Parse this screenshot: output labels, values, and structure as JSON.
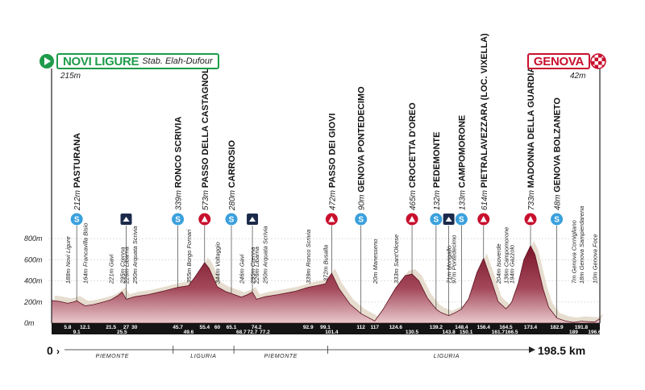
{
  "start": {
    "name": "NOVI LIGURE",
    "sub": "Stab. Elah-Dufour",
    "alt": "215m"
  },
  "finish": {
    "name": "GENOVA",
    "alt": "42m"
  },
  "distance": {
    "zero": "0",
    "total": "198.5 km"
  },
  "regions": [
    "PIEMONTE",
    "LIGURIA",
    "PIEMONTE",
    "LIGURIA"
  ],
  "altitude_ticks": [
    "0m",
    "200m",
    "400m",
    "600m",
    "800m"
  ],
  "colors": {
    "green": "#1e9b4a",
    "red": "#c8102e",
    "blue": "#3aa0dc",
    "profile": "#8e1b2f"
  },
  "markers": [
    {
      "km": 9.1,
      "type": "sprint",
      "alt": "212m",
      "name": "PASTURANA"
    },
    {
      "km": 27,
      "type": "feed",
      "alt": "",
      "name": ""
    },
    {
      "km": 45.7,
      "type": "sprint",
      "alt": "339m",
      "name": "RONCO SCRIVIA"
    },
    {
      "km": 55.4,
      "type": "climb",
      "alt": "573m",
      "name": "PASSO DELLA CASTAGNOLA"
    },
    {
      "km": 65.1,
      "type": "sprint",
      "alt": "280m",
      "name": "CARROSIO"
    },
    {
      "km": 72.7,
      "type": "feed",
      "alt": "",
      "name": ""
    },
    {
      "km": 101.4,
      "type": "climb",
      "alt": "472m",
      "name": "PASSO DEI GIOVI"
    },
    {
      "km": 112,
      "type": "sprint",
      "alt": "90m",
      "name": "GENOVA PONTEDECIMO"
    },
    {
      "km": 130.5,
      "type": "climb",
      "alt": "465m",
      "name": "CROCETTA D'OREO"
    },
    {
      "km": 139.2,
      "type": "sprint",
      "alt": "132m",
      "name": "PEDEMONTE"
    },
    {
      "km": 143.8,
      "type": "feed",
      "alt": "",
      "name": ""
    },
    {
      "km": 148.4,
      "type": "sprint",
      "alt": "133m",
      "name": "CAMPOMORONE"
    },
    {
      "km": 156.4,
      "type": "climb",
      "alt": "614m",
      "name": "PIETRALAVEZZARA (LOC. VIXELLA)"
    },
    {
      "km": 173.4,
      "type": "climb",
      "alt": "733m",
      "name": "MADONNA DELLA GUARDIA"
    },
    {
      "km": 182.9,
      "type": "sprint",
      "alt": "48m",
      "name": "GENOVA BOLZANETO"
    }
  ],
  "places": [
    {
      "km": 5.8,
      "label": "188m Novi Ligure"
    },
    {
      "km": 12.1,
      "label": "164m Francavilla Bisio"
    },
    {
      "km": 21.5,
      "label": "221m Gavi"
    },
    {
      "km": 25.5,
      "label": "295m Crenna"
    },
    {
      "km": 27,
      "label": "226m Libarna"
    },
    {
      "km": 30,
      "label": "250m Arquata Scrivia"
    },
    {
      "km": 49.6,
      "label": "355m Borgo Fornari"
    },
    {
      "km": 60,
      "label": "344m Voltaggio"
    },
    {
      "km": 68.7,
      "label": "246m Gavi"
    },
    {
      "km": 72.7,
      "label": "295m Crenna"
    },
    {
      "km": 74.2,
      "label": "226m Libarna"
    },
    {
      "km": 77.2,
      "label": "250m Arquata Scrivia"
    },
    {
      "km": 92.9,
      "label": "339m Ronco Scrivia"
    },
    {
      "km": 99.1,
      "label": "372m Busalla"
    },
    {
      "km": 117,
      "label": "20m Manesseno"
    },
    {
      "km": 124.6,
      "label": "333m Sant'Olcese"
    },
    {
      "km": 143.8,
      "label": "71m Morigallo"
    },
    {
      "km": 145.5,
      "label": "97m Pontedecimo"
    },
    {
      "km": 161.7,
      "label": "204m Isoverde"
    },
    {
      "km": 164.5,
      "label": "136m Campomorone"
    },
    {
      "km": 166.5,
      "label": "194m Gazzolo"
    },
    {
      "km": 189,
      "label": "7m Genova Cornigliano"
    },
    {
      "km": 191.8,
      "label": "18m Genova Sampierdarena"
    },
    {
      "km": 196.6,
      "label": "10m Genova Foce"
    }
  ],
  "km_labels": [
    {
      "km": 5.8,
      "label": "5.8",
      "row": 0
    },
    {
      "km": 9.1,
      "label": "9.1",
      "row": 1
    },
    {
      "km": 12.1,
      "label": "12.1",
      "row": 0
    },
    {
      "km": 21.5,
      "label": "21.5",
      "row": 0
    },
    {
      "km": 25.5,
      "label": "25.5",
      "row": 1
    },
    {
      "km": 27,
      "label": "27",
      "row": 0
    },
    {
      "km": 30,
      "label": "30",
      "row": 0
    },
    {
      "km": 45.7,
      "label": "45.7",
      "row": 0
    },
    {
      "km": 49.6,
      "label": "49.6",
      "row": 1
    },
    {
      "km": 55.4,
      "label": "55.4",
      "row": 0
    },
    {
      "km": 60,
      "label": "60",
      "row": 0
    },
    {
      "km": 65.1,
      "label": "65.1",
      "row": 0
    },
    {
      "km": 68.7,
      "label": "68.7",
      "row": 1
    },
    {
      "km": 72.7,
      "label": "72.7",
      "row": 1
    },
    {
      "km": 74.2,
      "label": "74.2",
      "row": 0
    },
    {
      "km": 77.2,
      "label": "77.2",
      "row": 1
    },
    {
      "km": 92.9,
      "label": "92.9",
      "row": 0
    },
    {
      "km": 99.1,
      "label": "99.1",
      "row": 0
    },
    {
      "km": 101.4,
      "label": "101.4",
      "row": 1
    },
    {
      "km": 112,
      "label": "112",
      "row": 0
    },
    {
      "km": 117,
      "label": "117",
      "row": 0
    },
    {
      "km": 124.6,
      "label": "124.6",
      "row": 0
    },
    {
      "km": 130.5,
      "label": "130.5",
      "row": 1
    },
    {
      "km": 139.2,
      "label": "139.2",
      "row": 0
    },
    {
      "km": 143.8,
      "label": "143.8",
      "row": 1
    },
    {
      "km": 148.4,
      "label": "148.4",
      "row": 0
    },
    {
      "km": 150.1,
      "label": "150.1",
      "row": 1
    },
    {
      "km": 156.4,
      "label": "156.4",
      "row": 0
    },
    {
      "km": 161.7,
      "label": "161.7",
      "row": 1
    },
    {
      "km": 164.5,
      "label": "164.5",
      "row": 0
    },
    {
      "km": 166.5,
      "label": "166.5",
      "row": 1
    },
    {
      "km": 173.4,
      "label": "173.4",
      "row": 0
    },
    {
      "km": 182.9,
      "label": "182.9",
      "row": 0
    },
    {
      "km": 189,
      "label": "189",
      "row": 1
    },
    {
      "km": 191.8,
      "label": "191.8",
      "row": 0
    },
    {
      "km": 196.6,
      "label": "196.6",
      "row": 1
    }
  ],
  "profile": [
    [
      0,
      215
    ],
    [
      3,
      205
    ],
    [
      5.8,
      188
    ],
    [
      8,
      200
    ],
    [
      9.1,
      212
    ],
    [
      11,
      180
    ],
    [
      12.1,
      164
    ],
    [
      15,
      175
    ],
    [
      18,
      195
    ],
    [
      21.5,
      221
    ],
    [
      24,
      260
    ],
    [
      25.5,
      295
    ],
    [
      27,
      226
    ],
    [
      30,
      250
    ],
    [
      35,
      270
    ],
    [
      40,
      300
    ],
    [
      45.7,
      339
    ],
    [
      49.6,
      355
    ],
    [
      52,
      440
    ],
    [
      55.4,
      573
    ],
    [
      57,
      520
    ],
    [
      60,
      344
    ],
    [
      63,
      300
    ],
    [
      65.1,
      280
    ],
    [
      68.7,
      246
    ],
    [
      71,
      270
    ],
    [
      72.7,
      295
    ],
    [
      74.2,
      226
    ],
    [
      77.2,
      250
    ],
    [
      82,
      270
    ],
    [
      88,
      300
    ],
    [
      92.9,
      339
    ],
    [
      96,
      355
    ],
    [
      99.1,
      372
    ],
    [
      100,
      420
    ],
    [
      101.4,
      472
    ],
    [
      104,
      330
    ],
    [
      108,
      180
    ],
    [
      112,
      90
    ],
    [
      117,
      20
    ],
    [
      120,
      130
    ],
    [
      124.6,
      333
    ],
    [
      128,
      450
    ],
    [
      130.5,
      465
    ],
    [
      133,
      400
    ],
    [
      136,
      240
    ],
    [
      139.2,
      132
    ],
    [
      141,
      100
    ],
    [
      143.8,
      71
    ],
    [
      146,
      97
    ],
    [
      148.4,
      133
    ],
    [
      151,
      230
    ],
    [
      154,
      480
    ],
    [
      156.4,
      614
    ],
    [
      159,
      420
    ],
    [
      161.7,
      204
    ],
    [
      164.5,
      136
    ],
    [
      166.5,
      194
    ],
    [
      169,
      380
    ],
    [
      171,
      600
    ],
    [
      173.4,
      733
    ],
    [
      175,
      650
    ],
    [
      178,
      320
    ],
    [
      180,
      150
    ],
    [
      182.9,
      48
    ],
    [
      186,
      20
    ],
    [
      189,
      7
    ],
    [
      191.8,
      18
    ],
    [
      196.6,
      10
    ],
    [
      198.5,
      42
    ]
  ]
}
